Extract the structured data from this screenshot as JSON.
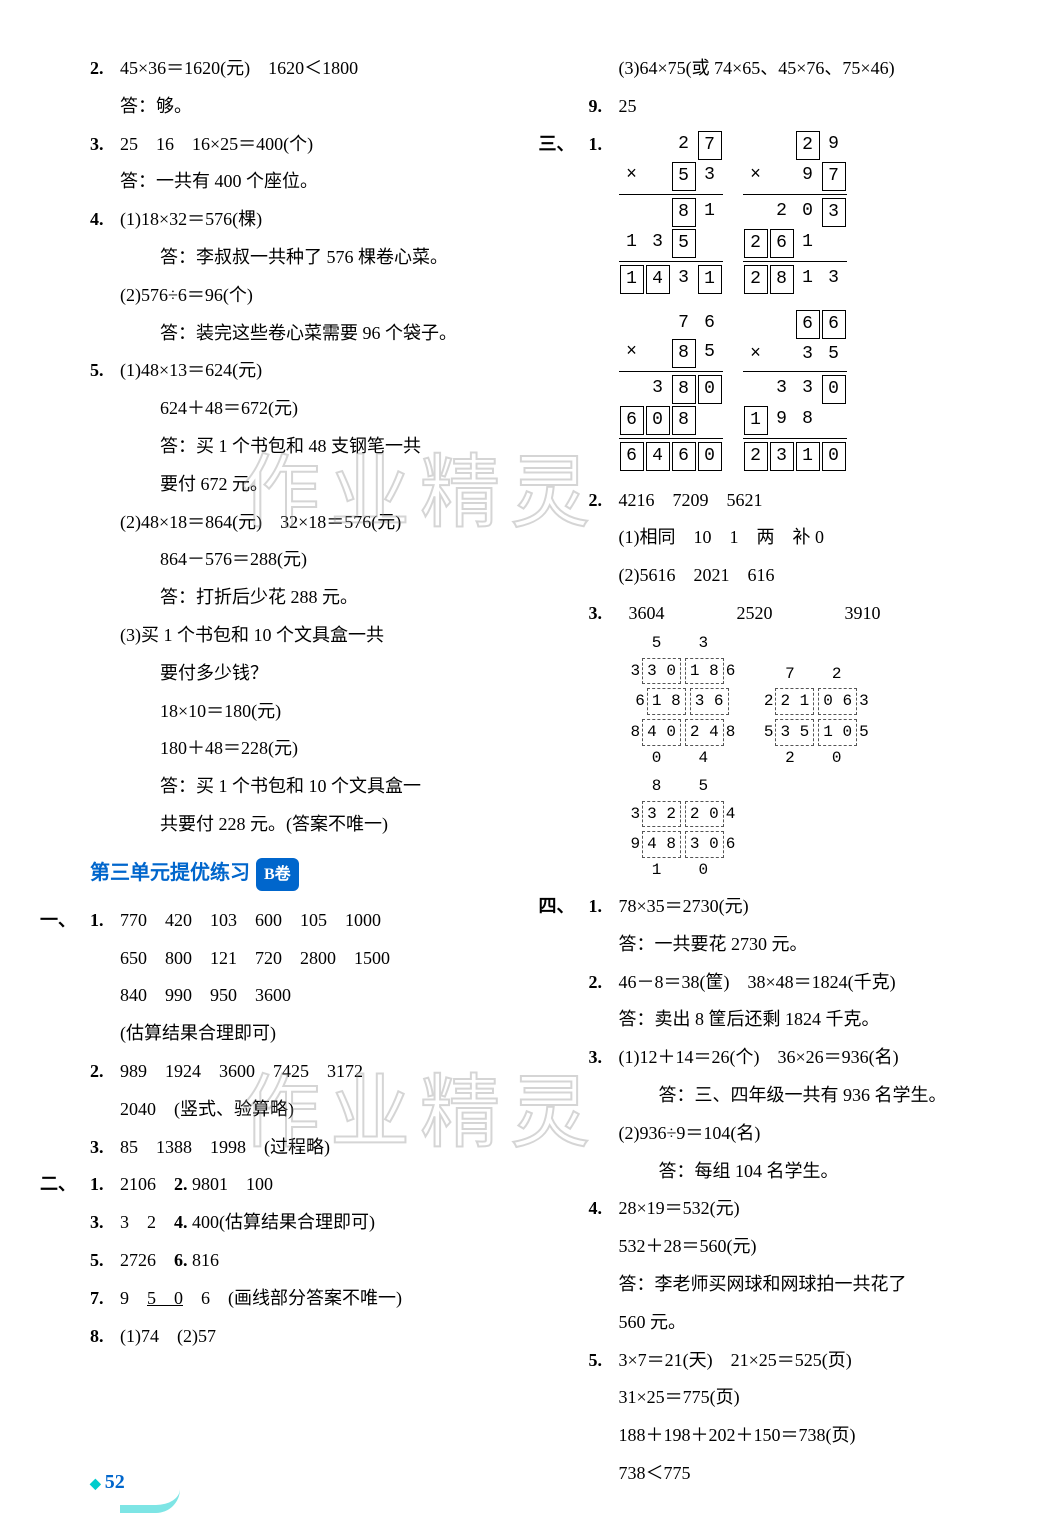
{
  "left": {
    "q2_l1": "45×36＝1620(元)　1620＜1800",
    "q2_l2": "答：够。",
    "q3_l1": "25　16　16×25＝400(个)",
    "q3_l2": "答：一共有 400 个座位。",
    "q4_1_l1": "(1)18×32＝576(棵)",
    "q4_1_l2": "答：李叔叔一共种了 576 棵卷心菜。",
    "q4_2_l1": "(2)576÷6＝96(个)",
    "q4_2_l2": "答：装完这些卷心菜需要 96 个袋子。",
    "q5_1_l1": "(1)48×13＝624(元)",
    "q5_1_l2": "624＋48＝672(元)",
    "q5_1_l3": "答：买 1 个书包和 48 支钢笔一共",
    "q5_1_l4": "要付 672 元。",
    "q5_2_l1": "(2)48×18＝864(元)　32×18＝576(元)",
    "q5_2_l2": "864－576＝288(元)",
    "q5_2_l3": "答：打折后少花 288 元。",
    "q5_3_l1": "(3)买 1 个书包和 10 个文具盒一共",
    "q5_3_l2": "要付多少钱？",
    "q5_3_l3": "18×10＝180(元)",
    "q5_3_l4": "180＋48＝228(元)",
    "q5_3_l5": "答：买 1 个书包和 10 个文具盒一",
    "q5_3_l6": "共要付 228 元。(答案不唯一)",
    "title": "第三单元提优练习",
    "badge": "B卷",
    "s1_1_l1": "770　420　103　600　105　1000",
    "s1_1_l2": "650　800　121　720　2800　1500",
    "s1_1_l3": "840　990　950　3600",
    "s1_1_l4": "(估算结果合理即可)",
    "s1_2_l1": "989　1924　3600　7425　3172",
    "s1_2_l2": "2040　(竖式、验算略)",
    "s1_3": "85　1388　1998　(过程略)",
    "s2_1": "2106",
    "s2_2": "9801　100",
    "s2_3": "3　2",
    "s2_4": "400(估算结果合理即可)",
    "s2_5": "2726",
    "s2_6": "816",
    "s2_7": "9　5　0　6　(画线部分答案不唯一)",
    "s2_7u": "5　0",
    "s2_8": "(1)74　(2)57"
  },
  "right": {
    "s2_8_3": "(3)64×75(或 74×65、45×76、75×46)",
    "s2_9": "25",
    "s3_2_l1": "4216　7209　5621",
    "s3_2_l2": "(1)相同　10　1　两　补 0",
    "s3_2_l3": "(2)5616　2021　616",
    "s3_3_l1": "3604　　　　2520　　　　3910",
    "s4_1_l1": "78×35＝2730(元)",
    "s4_1_l2": "答：一共要花 2730 元。",
    "s4_2_l1": "46－8＝38(筐)　38×48＝1824(千克)",
    "s4_2_l2": "答：卖出 8 筐后还剩 1824 千克。",
    "s4_3_1_l1": "(1)12＋14＝26(个)　36×26＝936(名)",
    "s4_3_1_l2": "答：三、四年级一共有 936 名学生。",
    "s4_3_2_l1": "(2)936÷9＝104(名)",
    "s4_3_2_l2": "答：每组 104 名学生。",
    "s4_4_l1": "28×19＝532(元)",
    "s4_4_l2": "532＋28＝560(元)",
    "s4_4_l3": "答：李老师买网球和网球拍一共花了",
    "s4_4_l4": "560 元。",
    "s4_5_l1": "3×7＝21(天)　21×25＝525(页)",
    "s4_5_l2": "31×25＝775(页)",
    "s4_5_l3": "188＋198＋202＋150＝738(页)",
    "s4_5_l4": "738＜775"
  },
  "calcs": {
    "c1": {
      "top": [
        "2",
        "7"
      ],
      "topbox": [
        1
      ],
      "mul": [
        "5",
        "3"
      ],
      "mulbox": [
        0
      ],
      "p1": [
        "8",
        "1"
      ],
      "p1box": [
        0
      ],
      "p2": [
        "1",
        "3",
        "5"
      ],
      "p2box": [
        2
      ],
      "ans": [
        "1",
        "4",
        "3",
        "1"
      ],
      "ansbox": [
        0,
        1,
        3
      ]
    },
    "c2": {
      "top": [
        "2",
        "9"
      ],
      "topbox": [
        0
      ],
      "mul": [
        "9",
        "7"
      ],
      "mulbox": [
        1
      ],
      "p1": [
        "2",
        "0",
        "3"
      ],
      "p1box": [
        2
      ],
      "p2": [
        "2",
        "6",
        "1"
      ],
      "p2box": [
        0,
        1
      ],
      "ans": [
        "2",
        "8",
        "1",
        "3"
      ],
      "ansbox": [
        0,
        1
      ]
    },
    "c3": {
      "top": [
        "7",
        "6"
      ],
      "topbox": [],
      "mul": [
        "8",
        "5"
      ],
      "mulbox": [
        0
      ],
      "p1": [
        "3",
        "8",
        "0"
      ],
      "p1box": [
        1,
        2
      ],
      "p2": [
        "6",
        "0",
        "8"
      ],
      "p2box": [
        0,
        1,
        2
      ],
      "ans": [
        "6",
        "4",
        "6",
        "0"
      ],
      "ansbox": [
        0,
        1,
        2,
        3
      ]
    },
    "c4": {
      "top": [
        "6",
        "6"
      ],
      "topbox": [
        0,
        1
      ],
      "mul": [
        "3",
        "5"
      ],
      "mulbox": [],
      "p1": [
        "3",
        "3",
        "0"
      ],
      "p1box": [
        2
      ],
      "p2": [
        "1",
        "9",
        "8"
      ],
      "p2box": [
        0
      ],
      "ans": [
        "2",
        "3",
        "1",
        "0"
      ],
      "ansbox": [
        0,
        1,
        2,
        3
      ]
    }
  },
  "page": "52"
}
